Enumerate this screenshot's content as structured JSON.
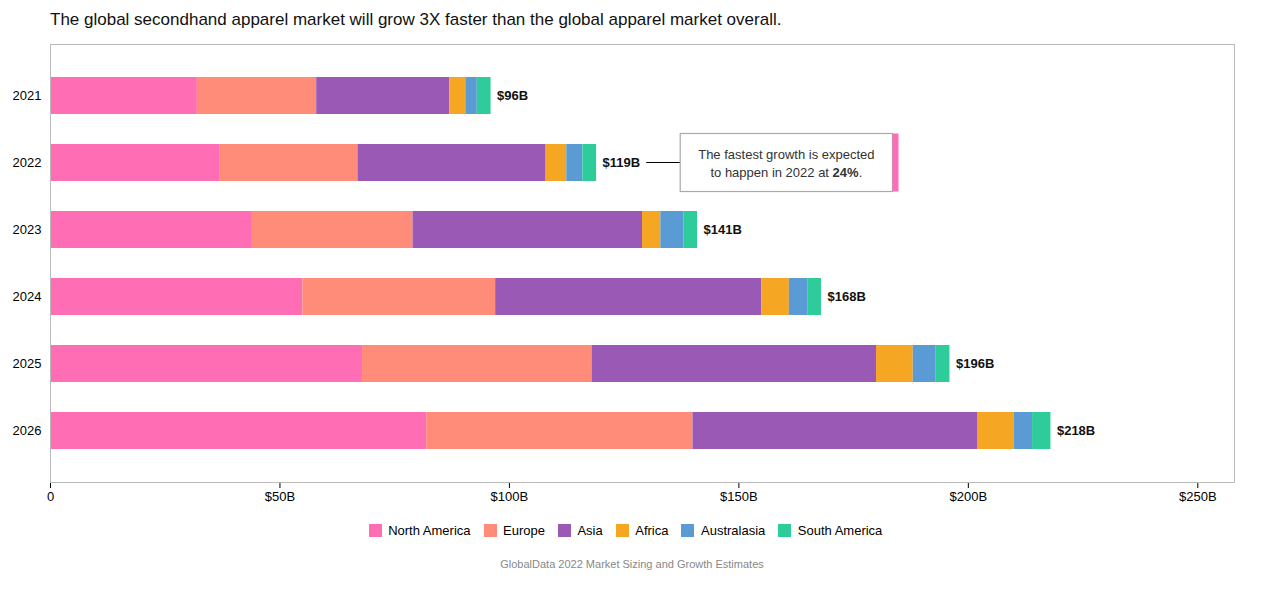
{
  "chart_data": {
    "type": "bar",
    "orientation": "horizontal",
    "stacked": true,
    "title": "The global secondhand apparel market will grow 3X faster than the global apparel market overall.",
    "caption": "GlobalData 2022 Market Sizing and Growth Estimates",
    "categories": [
      "2021",
      "2022",
      "2023",
      "2024",
      "2025",
      "2026"
    ],
    "series": [
      {
        "name": "North America",
        "color": "#FF6EB4",
        "values": [
          32,
          37,
          44,
          55,
          68,
          82
        ]
      },
      {
        "name": "Europe",
        "color": "#FF8C78",
        "values": [
          26,
          30,
          35,
          42,
          50,
          58
        ]
      },
      {
        "name": "Asia",
        "color": "#9B59B6",
        "values": [
          29,
          41,
          50,
          58,
          62,
          62
        ]
      },
      {
        "name": "Africa",
        "color": "#F5A623",
        "values": [
          3.5,
          4.5,
          4,
          6,
          8,
          8
        ]
      },
      {
        "name": "Australasia",
        "color": "#5B9BD5",
        "values": [
          2.5,
          3.5,
          5,
          4,
          5,
          4
        ]
      },
      {
        "name": "South America",
        "color": "#2ECC9A",
        "values": [
          3,
          3,
          3,
          3,
          3,
          4
        ]
      }
    ],
    "totals": [
      96,
      119,
      141,
      168,
      196,
      218
    ],
    "total_labels": [
      "$96B",
      "$119B",
      "$141B",
      "$168B",
      "$196B",
      "$218B"
    ],
    "xlim": [
      0,
      258
    ],
    "xticks": [
      0,
      {
        "value": 50,
        "label": "$50B"
      },
      {
        "value": 100,
        "label": "$100B"
      },
      {
        "value": 150,
        "label": "$150B"
      },
      {
        "value": 200,
        "label": "$200B"
      },
      {
        "value": 250,
        "label": "$250B"
      }
    ],
    "grid": false,
    "legend": "bottom",
    "annotation": {
      "category": "2022",
      "color": "#FF6EB4",
      "lines": [
        [
          {
            "text": "The fastest growth is expected"
          }
        ],
        [
          {
            "text": "to happen in 2022 at "
          },
          {
            "text": "24%",
            "bold": true
          },
          {
            "text": "."
          }
        ]
      ]
    }
  }
}
